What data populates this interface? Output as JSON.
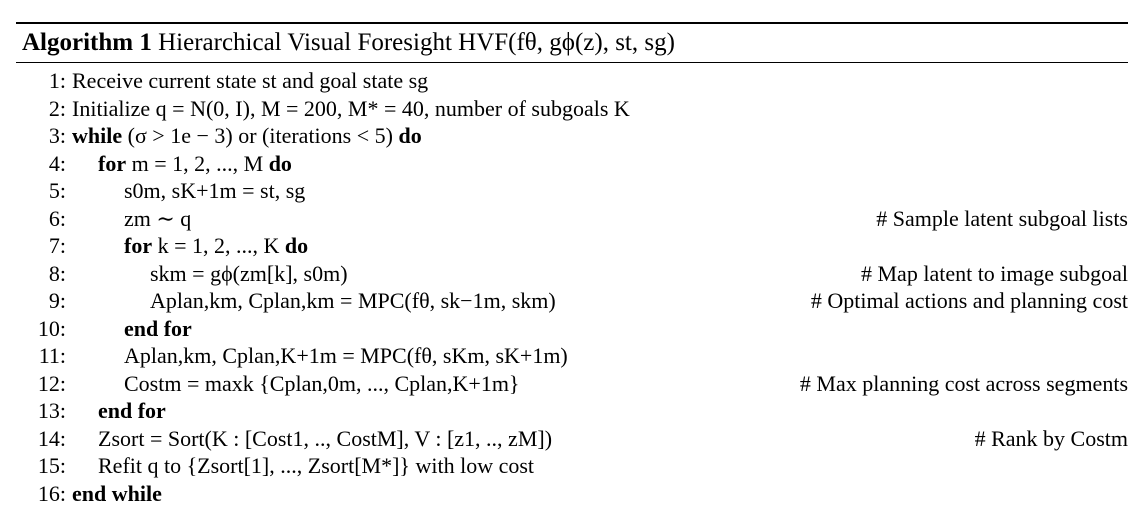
{
  "algorithm": {
    "label": "Algorithm 1",
    "title": "Hierarchical Visual Foresight HVF(fθ, gϕ(z), st, sg)",
    "lines": [
      {
        "num": "1:",
        "text": "Receive current state st and goal state sg",
        "comment": ""
      },
      {
        "num": "2:",
        "text": "Initialize q = N(0, I), M = 200, M* = 40, number of subgoals K",
        "comment": ""
      },
      {
        "num": "3:",
        "text": "while (σ > 1e − 3) or (iterations < 5) do",
        "comment": ""
      },
      {
        "num": "4:",
        "text": "for m = 1, 2, ..., M do",
        "comment": ""
      },
      {
        "num": "5:",
        "text": "s0m, sK+1m = st, sg",
        "comment": ""
      },
      {
        "num": "6:",
        "text": "zm ∼ q",
        "comment": "# Sample latent subgoal lists"
      },
      {
        "num": "7:",
        "text": "for k = 1, 2, ..., K do",
        "comment": ""
      },
      {
        "num": "8:",
        "text": "skm = gϕ(zm[k], s0m)",
        "comment": "# Map latent to image subgoal"
      },
      {
        "num": "9:",
        "text": "Aplan,km, Cplan,km = MPC(fθ, sk−1m, skm)",
        "comment": "# Optimal actions and planning cost"
      },
      {
        "num": "10:",
        "text": "end for",
        "comment": ""
      },
      {
        "num": "11:",
        "text": "Aplan,km, Cplan,K+1m = MPC(fθ, sKm, sK+1m)",
        "comment": ""
      },
      {
        "num": "12:",
        "text": "Costm = maxk {Cplan,0m, ..., Cplan,K+1m}",
        "comment": "# Max planning cost across segments"
      },
      {
        "num": "13:",
        "text": "end for",
        "comment": ""
      },
      {
        "num": "14:",
        "text": "Zsort = Sort(K : [Cost1, .., CostM], V : [z1, .., zM])",
        "comment": "# Rank by Costm"
      },
      {
        "num": "15:",
        "text": "Refit q to {Zsort[1], ..., Zsort[M*]} with low cost",
        "comment": ""
      },
      {
        "num": "16:",
        "text": "end while",
        "comment": ""
      }
    ]
  }
}
